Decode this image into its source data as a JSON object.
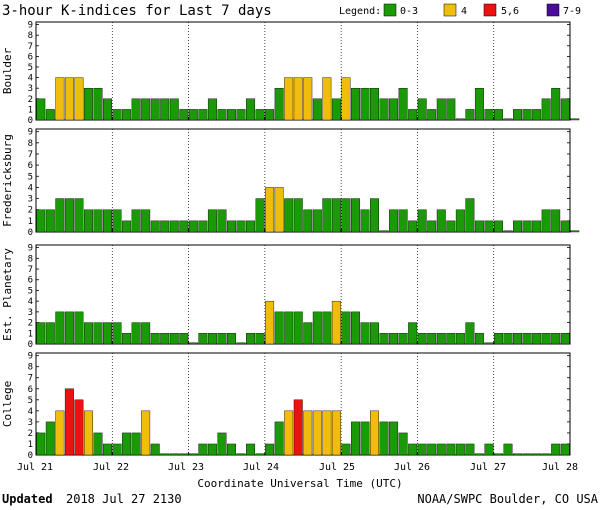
{
  "chart_data": {
    "type": "bar",
    "title": "3-hour K-indices for Last 7 days",
    "legend": {
      "label": "Legend:",
      "entries": [
        {
          "label": "0-3",
          "color": "#1a9a06"
        },
        {
          "label": "4",
          "color": "#f0bd0c"
        },
        {
          "label": "5,6",
          "color": "#ee1111"
        },
        {
          "label": "7-9",
          "color": "#4a0d99"
        }
      ]
    },
    "xlabel": "Coordinate Universal Time (UTC)",
    "x_ticks": [
      "Jul 21",
      "Jul 22",
      "Jul 23",
      "Jul 24",
      "Jul 25",
      "Jul 26",
      "Jul 27",
      "Jul 28"
    ],
    "ylim": [
      0,
      9
    ],
    "y_ticks": [
      "0",
      "1",
      "2",
      "3",
      "4",
      "5",
      "6",
      "7",
      "8",
      "9"
    ],
    "series": [
      {
        "name": "Boulder",
        "values": [
          2,
          1,
          4,
          4,
          4,
          3,
          3,
          2,
          1,
          1,
          2,
          2,
          2,
          2,
          2,
          1,
          1,
          1,
          2,
          1,
          1,
          1,
          2,
          1,
          1,
          3,
          4,
          4,
          4,
          2,
          4,
          2,
          4,
          3,
          3,
          3,
          2,
          2,
          3,
          1,
          2,
          1,
          2,
          2,
          0,
          1,
          3,
          1,
          1,
          0,
          1,
          1,
          1,
          2,
          3,
          2,
          0
        ]
      },
      {
        "name": "Fredericksburg",
        "values": [
          2,
          2,
          3,
          3,
          3,
          2,
          2,
          2,
          2,
          1,
          2,
          2,
          1,
          1,
          1,
          1,
          1,
          1,
          2,
          2,
          1,
          1,
          1,
          3,
          4,
          4,
          3,
          3,
          2,
          2,
          3,
          3,
          3,
          3,
          2,
          3,
          0,
          2,
          2,
          1,
          2,
          1,
          2,
          1,
          2,
          3,
          1,
          1,
          1,
          0,
          1,
          1,
          1,
          2,
          2,
          1,
          0
        ]
      },
      {
        "name": "Est. Planetary",
        "values": [
          2,
          2,
          3,
          3,
          3,
          2,
          2,
          2,
          2,
          1,
          2,
          2,
          1,
          1,
          1,
          1,
          0,
          1,
          1,
          1,
          1,
          0,
          1,
          1,
          4,
          3,
          3,
          3,
          2,
          3,
          3,
          4,
          3,
          3,
          2,
          2,
          1,
          1,
          1,
          2,
          1,
          1,
          1,
          1,
          1,
          2,
          1,
          0,
          1,
          1,
          1,
          1,
          1,
          1,
          1,
          1
        ]
      },
      {
        "name": "College",
        "values": [
          2,
          3,
          4,
          6,
          5,
          4,
          2,
          1,
          1,
          2,
          2,
          4,
          1,
          0,
          0,
          0,
          0,
          1,
          1,
          2,
          1,
          0,
          1,
          0,
          1,
          3,
          4,
          5,
          4,
          4,
          4,
          4,
          1,
          3,
          3,
          4,
          3,
          3,
          2,
          1,
          1,
          1,
          1,
          1,
          1,
          1,
          0,
          1,
          0,
          1,
          0,
          0,
          0,
          0,
          1,
          1
        ]
      }
    ]
  },
  "footer": {
    "updated_label": "Updated",
    "updated_value": "2018 Jul 27 2130",
    "source": "NOAA/SWPC Boulder, CO USA"
  }
}
